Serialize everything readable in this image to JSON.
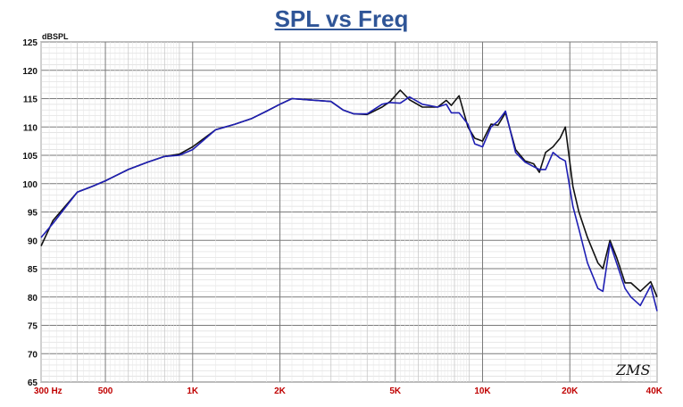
{
  "chart_data": {
    "type": "line",
    "title": "SPL vs Freq",
    "ylabel": "dBSPL",
    "xlabel": "",
    "x_scale": "log",
    "xlim": [
      300,
      40000
    ],
    "ylim": [
      65,
      125
    ],
    "grid": true,
    "y_ticks": [
      65,
      70,
      75,
      80,
      85,
      90,
      95,
      100,
      105,
      110,
      115,
      120,
      125
    ],
    "x_ticks": [
      {
        "value": 300,
        "label": "300  Hz"
      },
      {
        "value": 500,
        "label": "500"
      },
      {
        "value": 1000,
        "label": "1K"
      },
      {
        "value": 2000,
        "label": "2K"
      },
      {
        "value": 5000,
        "label": "5K"
      },
      {
        "value": 10000,
        "label": "10K"
      },
      {
        "value": 20000,
        "label": "20K"
      },
      {
        "value": 40000,
        "label": "40K"
      }
    ],
    "brand_mark": "ZMS",
    "series": [
      {
        "color": "#111111",
        "points": [
          [
            300,
            89.0
          ],
          [
            330,
            93.5
          ],
          [
            400,
            98.5
          ],
          [
            450,
            99.5
          ],
          [
            500,
            100.5
          ],
          [
            600,
            102.5
          ],
          [
            700,
            103.8
          ],
          [
            800,
            104.8
          ],
          [
            900,
            105.2
          ],
          [
            1000,
            106.5
          ],
          [
            1200,
            109.5
          ],
          [
            1400,
            110.5
          ],
          [
            1600,
            111.5
          ],
          [
            1800,
            112.8
          ],
          [
            2000,
            114.0
          ],
          [
            2200,
            115.0
          ],
          [
            2500,
            114.8
          ],
          [
            3000,
            114.5
          ],
          [
            3300,
            113.0
          ],
          [
            3600,
            112.3
          ],
          [
            4000,
            112.2
          ],
          [
            4500,
            113.5
          ],
          [
            4800,
            114.5
          ],
          [
            5200,
            116.5
          ],
          [
            5600,
            114.8
          ],
          [
            6200,
            113.5
          ],
          [
            7000,
            113.5
          ],
          [
            7500,
            114.7
          ],
          [
            7800,
            113.8
          ],
          [
            8300,
            115.5
          ],
          [
            8900,
            110.0
          ],
          [
            9400,
            108.0
          ],
          [
            10000,
            107.5
          ],
          [
            10700,
            110.5
          ],
          [
            11300,
            110.3
          ],
          [
            12000,
            112.5
          ],
          [
            13000,
            106.0
          ],
          [
            14000,
            104.0
          ],
          [
            15000,
            103.5
          ],
          [
            15700,
            102.0
          ],
          [
            16500,
            105.5
          ],
          [
            17500,
            106.5
          ],
          [
            18500,
            108.0
          ],
          [
            19300,
            110.0
          ],
          [
            20500,
            99.5
          ],
          [
            21500,
            95.0
          ],
          [
            23000,
            90.5
          ],
          [
            25000,
            86.0
          ],
          [
            26000,
            85.0
          ],
          [
            27500,
            90.0
          ],
          [
            29000,
            87.0
          ],
          [
            31000,
            82.5
          ],
          [
            32500,
            82.5
          ],
          [
            35000,
            81.0
          ],
          [
            38000,
            82.7
          ],
          [
            40000,
            80.0
          ]
        ]
      },
      {
        "color": "#1f1fb4",
        "points": [
          [
            300,
            90.5
          ],
          [
            330,
            93.0
          ],
          [
            400,
            98.5
          ],
          [
            450,
            99.5
          ],
          [
            500,
            100.5
          ],
          [
            600,
            102.5
          ],
          [
            700,
            103.8
          ],
          [
            800,
            104.8
          ],
          [
            900,
            105.0
          ],
          [
            1000,
            106.0
          ],
          [
            1200,
            109.5
          ],
          [
            1400,
            110.5
          ],
          [
            1600,
            111.5
          ],
          [
            1800,
            112.8
          ],
          [
            2000,
            114.0
          ],
          [
            2200,
            115.0
          ],
          [
            2500,
            114.8
          ],
          [
            3000,
            114.5
          ],
          [
            3300,
            113.0
          ],
          [
            3600,
            112.3
          ],
          [
            4000,
            112.3
          ],
          [
            4500,
            114.0
          ],
          [
            4800,
            114.3
          ],
          [
            5200,
            114.2
          ],
          [
            5600,
            115.3
          ],
          [
            6200,
            114.0
          ],
          [
            7000,
            113.5
          ],
          [
            7500,
            114.0
          ],
          [
            7800,
            112.5
          ],
          [
            8300,
            112.5
          ],
          [
            8900,
            110.5
          ],
          [
            9400,
            107.0
          ],
          [
            10000,
            106.5
          ],
          [
            10700,
            110.0
          ],
          [
            11300,
            111.0
          ],
          [
            12000,
            112.8
          ],
          [
            13000,
            105.5
          ],
          [
            14000,
            103.8
          ],
          [
            15000,
            103.0
          ],
          [
            15700,
            102.5
          ],
          [
            16500,
            102.5
          ],
          [
            17500,
            105.5
          ],
          [
            18500,
            104.5
          ],
          [
            19300,
            104.0
          ],
          [
            20500,
            96.0
          ],
          [
            21500,
            92.0
          ],
          [
            23000,
            86.0
          ],
          [
            25000,
            81.5
          ],
          [
            26000,
            81.0
          ],
          [
            27500,
            89.5
          ],
          [
            29000,
            86.0
          ],
          [
            31000,
            81.5
          ],
          [
            32500,
            80.0
          ],
          [
            35000,
            78.5
          ],
          [
            38000,
            82.0
          ],
          [
            40000,
            77.5
          ]
        ]
      }
    ]
  }
}
